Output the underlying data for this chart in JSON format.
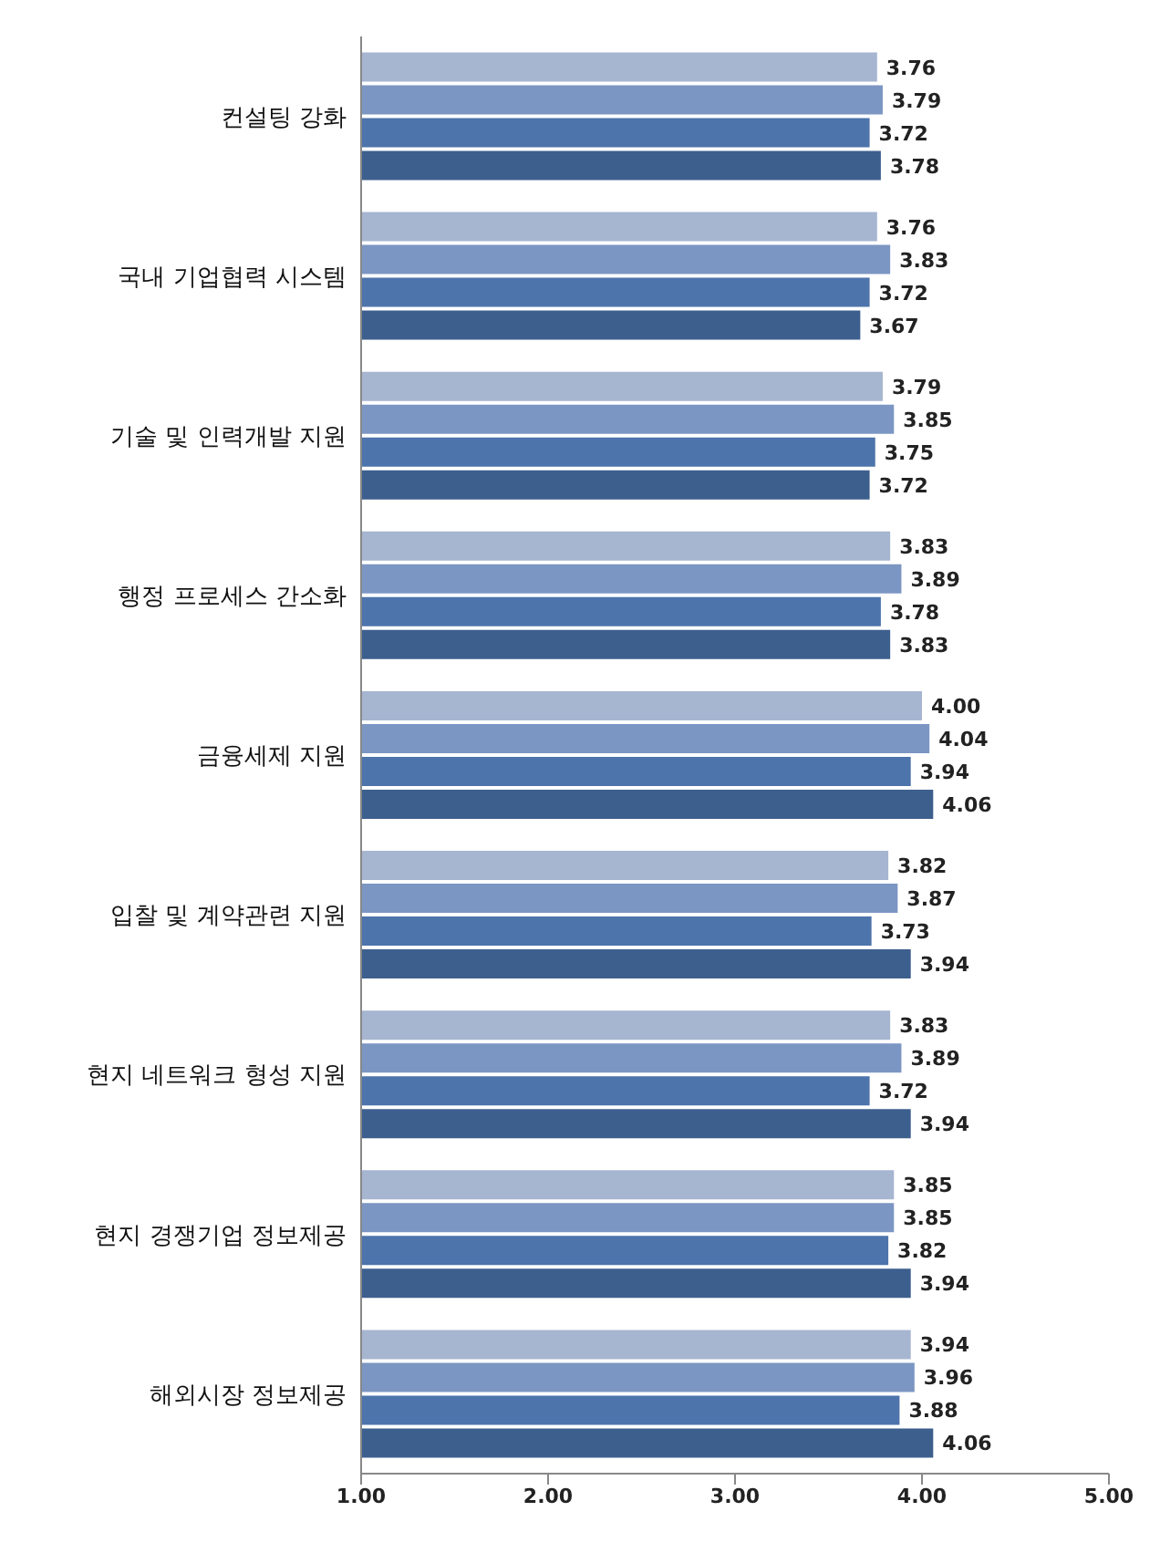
{
  "chart_data": {
    "type": "bar",
    "orientation": "horizontal",
    "categories": [
      "컨설팅 강화",
      "국내 기업협력 시스템",
      "기술 및 인력개발 지원",
      "행정 프로세스 간소화",
      "금융세제 지원",
      "입찰 및 계약관련 지원",
      "현지 네트워크 형성 지원",
      "현지 경쟁기업 정보제공",
      "해외시장 정보제공"
    ],
    "series": [
      {
        "color": "#a6b5d0",
        "values": [
          3.76,
          3.76,
          3.79,
          3.83,
          4.0,
          3.82,
          3.83,
          3.85,
          3.94
        ],
        "value_labels": [
          "3.76",
          "3.76",
          "3.79",
          "3.83",
          "4.00",
          "3.82",
          "3.83",
          "3.85",
          "3.94"
        ]
      },
      {
        "color": "#7c96c3",
        "values": [
          3.79,
          3.83,
          3.85,
          3.89,
          4.04,
          3.87,
          3.89,
          3.85,
          3.96
        ],
        "value_labels": [
          "3.79",
          "3.83",
          "3.85",
          "3.89",
          "4.04",
          "3.87",
          "3.89",
          "3.85",
          "3.96"
        ]
      },
      {
        "color": "#4d74ab",
        "values": [
          3.72,
          3.72,
          3.75,
          3.78,
          3.94,
          3.73,
          3.72,
          3.82,
          3.88
        ],
        "value_labels": [
          "3.72",
          "3.72",
          "3.75",
          "3.78",
          "3.94",
          "3.73",
          "3.72",
          "3.82",
          "3.88"
        ]
      },
      {
        "color": "#3d5f8e",
        "values": [
          3.78,
          3.67,
          3.72,
          3.83,
          4.06,
          3.94,
          3.94,
          3.94,
          4.06
        ],
        "value_labels": [
          "3.78",
          "3.67",
          "3.72",
          "3.83",
          "4.06",
          "3.94",
          "3.94",
          "3.94",
          "4.06"
        ]
      }
    ],
    "xlim": [
      1,
      5
    ],
    "xticks": [
      {
        "value": 1,
        "label": "1.00"
      },
      {
        "value": 2,
        "label": "2.00"
      },
      {
        "value": 3,
        "label": "3.00"
      },
      {
        "value": 4,
        "label": "4.00"
      },
      {
        "value": 5,
        "label": "5.00"
      }
    ],
    "grid": false,
    "legend": false
  }
}
